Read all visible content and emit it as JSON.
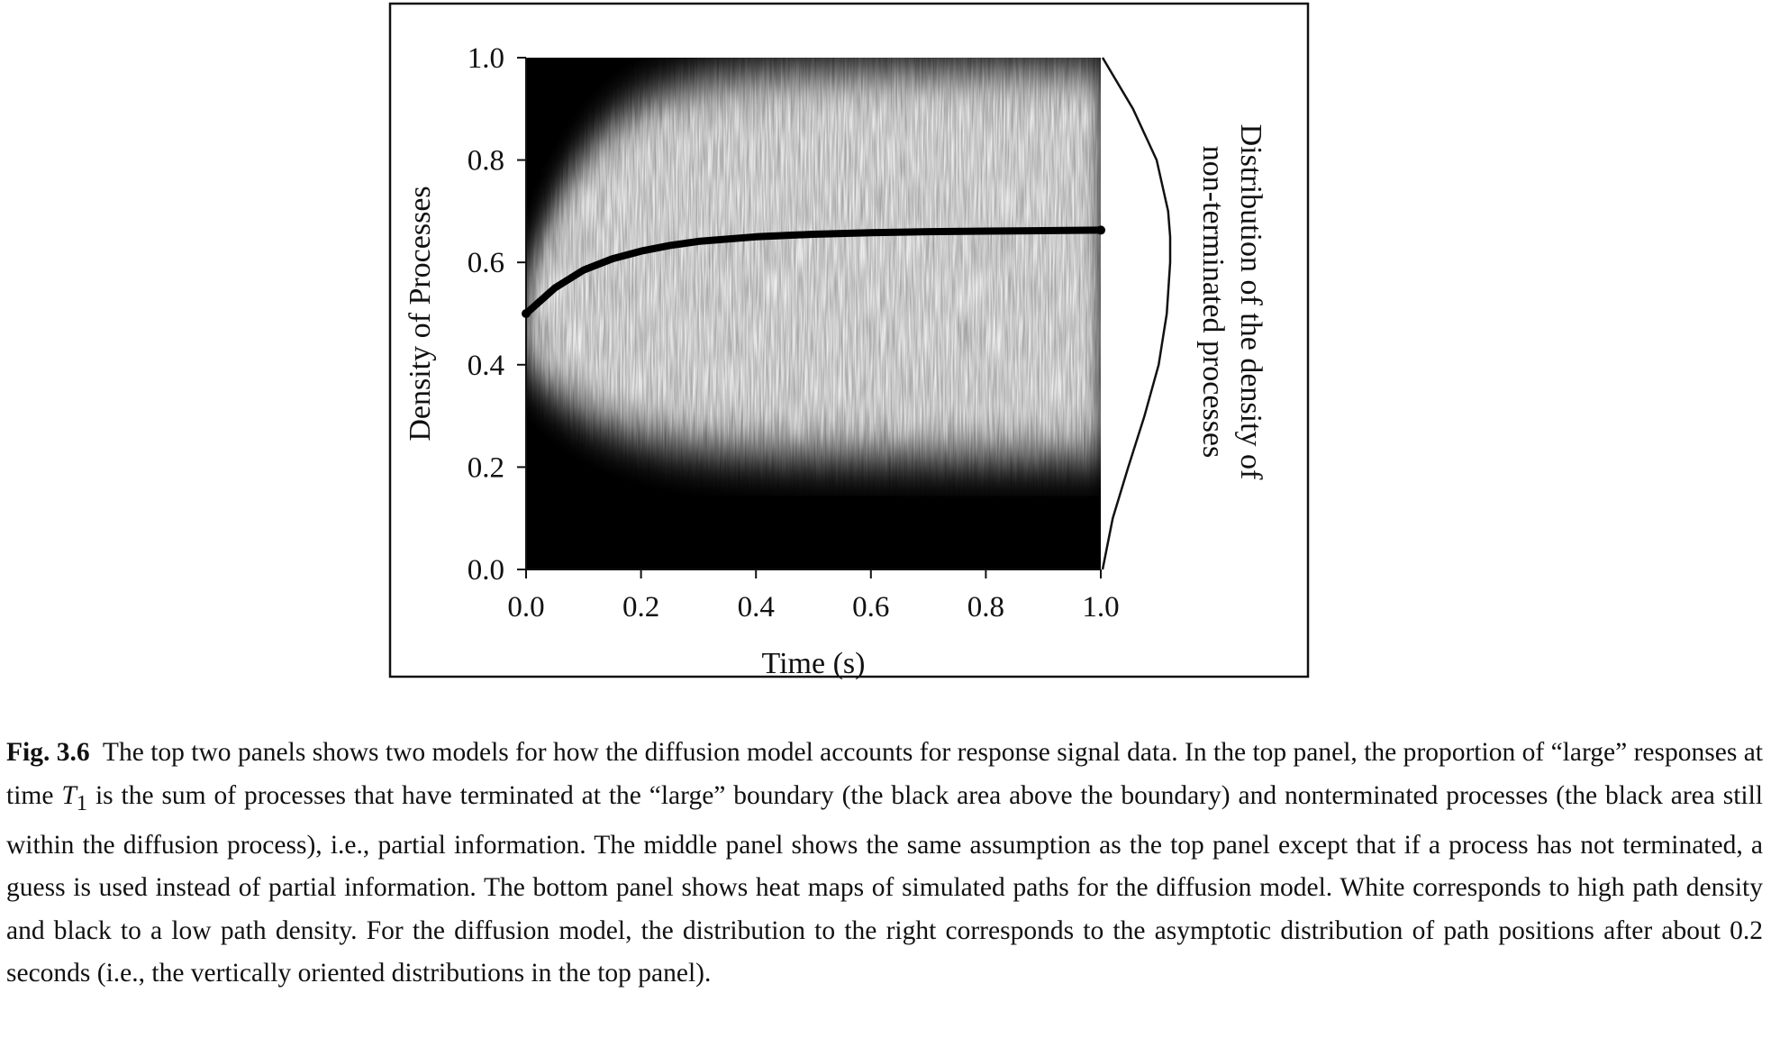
{
  "chart_data": {
    "type": "heatmap",
    "title": "",
    "xlabel": "Time (s)",
    "ylabel": "Density of Processes",
    "right_label_lines": [
      "Distribution of the density of",
      "non-terminated processes"
    ],
    "xlim": [
      0.0,
      1.0
    ],
    "ylim": [
      0.0,
      1.0
    ],
    "x_ticks": [
      "0.0",
      "0.2",
      "0.4",
      "0.6",
      "0.8",
      "1.0"
    ],
    "y_ticks": [
      "0.0",
      "0.2",
      "0.4",
      "0.6",
      "0.8",
      "1.0"
    ],
    "color_scale": {
      "high_path_density": "#ffffff",
      "low_path_density": "#000000"
    },
    "mean_path": {
      "x": [
        0.0,
        0.05,
        0.1,
        0.15,
        0.2,
        0.25,
        0.3,
        0.4,
        0.5,
        0.6,
        0.7,
        0.8,
        0.9,
        1.0
      ],
      "y": [
        0.5,
        0.55,
        0.585,
        0.607,
        0.622,
        0.633,
        0.641,
        0.65,
        0.655,
        0.658,
        0.66,
        0.661,
        0.662,
        0.663
      ]
    },
    "right_distribution": {
      "y": [
        0.0,
        0.1,
        0.2,
        0.3,
        0.4,
        0.5,
        0.6,
        0.65,
        0.7,
        0.8,
        0.9,
        1.0
      ],
      "density": [
        0.0,
        0.15,
        0.38,
        0.62,
        0.83,
        0.95,
        1.0,
        1.0,
        0.97,
        0.8,
        0.45,
        0.0
      ]
    }
  },
  "caption": {
    "label": "Fig. 3.6",
    "text_before_symbol": "The top two panels shows two models for how the diffusion model accounts for response signal data. In the top panel, the proportion of “large” responses at time ",
    "symbol_base": "T",
    "symbol_sub": "1",
    "text_after_symbol": " is the sum of processes that have terminated at the “large” boundary (the black area above the boundary) and nonterminated processes (the black area still within the diffusion process), i.e., partial information. The middle panel shows the same assumption as the top panel except that if a process has not terminated, a guess is used instead of partial information. The bottom panel shows heat maps of simulated paths for the diffusion model. White corresponds to high path density and black to a low path density. For the diffusion model, the distribution to the right corresponds to the asymptotic distribution of path positions after about 0.2 seconds (i.e., the vertically oriented distributions in the top panel)."
  }
}
